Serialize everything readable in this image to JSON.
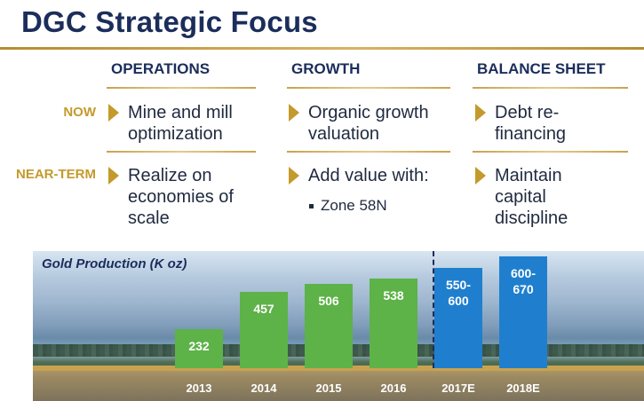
{
  "title": "DGC Strategic Focus",
  "colors": {
    "navy": "#1b2d5b",
    "gold": "#c49a2c",
    "green": "#5db248",
    "blue": "#1f7fce"
  },
  "columns": [
    "OPERATIONS",
    "GROWTH",
    "BALANCE SHEET"
  ],
  "rows": [
    {
      "label": "NOW",
      "cells": [
        "Mine and mill optimization",
        "Organic growth valuation",
        "Debt re-financing"
      ]
    },
    {
      "label": "NEAR-TERM",
      "cells": [
        "Realize on economies of scale",
        "Add value with:",
        "Maintain capital discipline"
      ]
    }
  ],
  "growth_sub_bullet": "Zone 58N",
  "icons": {
    "bullet_arrow": "triangle-right-icon",
    "sub_bullet": "square-bullet-icon"
  },
  "chart_data": {
    "type": "bar",
    "title": "Gold Production (K oz)",
    "categories": [
      "2013",
      "2014",
      "2015",
      "2016",
      "2017E",
      "2018E"
    ],
    "series": [
      {
        "values": [
          232,
          457,
          506,
          538,
          null,
          null
        ]
      },
      {
        "ranges": [
          null,
          null,
          null,
          null,
          [
            550,
            600
          ],
          [
            600,
            670
          ]
        ]
      }
    ],
    "labels": [
      "232",
      "457",
      "506",
      "538",
      "550-\n600",
      "600-\n670"
    ],
    "estimate_from_index": 4,
    "ylim": [
      0,
      690
    ]
  }
}
